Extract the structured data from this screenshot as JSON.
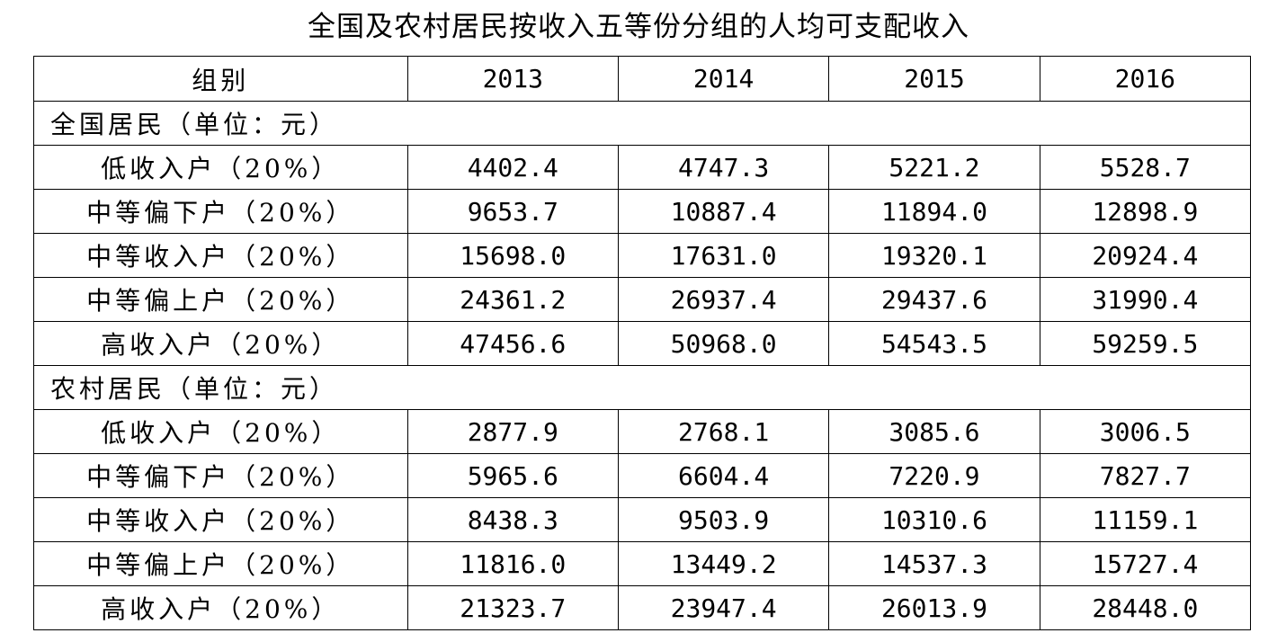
{
  "title": "全国及农村居民按收入五等份分组的人均可支配收入",
  "header": {
    "group_label": "组别",
    "years": [
      "2013",
      "2014",
      "2015",
      "2016"
    ]
  },
  "sections": [
    {
      "label": "全国居民（单位：元）",
      "rows": [
        {
          "label": "低收入户（20%）",
          "values": [
            "4402.4",
            "4747.3",
            "5221.2",
            "5528.7"
          ]
        },
        {
          "label": "中等偏下户（20%）",
          "values": [
            "9653.7",
            "10887.4",
            "11894.0",
            "12898.9"
          ]
        },
        {
          "label": "中等收入户（20%）",
          "values": [
            "15698.0",
            "17631.0",
            "19320.1",
            "20924.4"
          ]
        },
        {
          "label": "中等偏上户（20%）",
          "values": [
            "24361.2",
            "26937.4",
            "29437.6",
            "31990.4"
          ]
        },
        {
          "label": "高收入户（20%）",
          "values": [
            "47456.6",
            "50968.0",
            "54543.5",
            "59259.5"
          ]
        }
      ]
    },
    {
      "label": "农村居民（单位：元）",
      "rows": [
        {
          "label": "低收入户（20%）",
          "values": [
            "2877.9",
            "2768.1",
            "3085.6",
            "3006.5"
          ]
        },
        {
          "label": "中等偏下户（20%）",
          "values": [
            "5965.6",
            "6604.4",
            "7220.9",
            "7827.7"
          ]
        },
        {
          "label": "中等收入户（20%）",
          "values": [
            "8438.3",
            "9503.9",
            "10310.6",
            "11159.1"
          ]
        },
        {
          "label": "中等偏上户（20%）",
          "values": [
            "11816.0",
            "13449.2",
            "14537.3",
            "15727.4"
          ]
        },
        {
          "label": "高收入户（20%）",
          "values": [
            "21323.7",
            "23947.4",
            "26013.9",
            "28448.0"
          ]
        }
      ]
    }
  ]
}
